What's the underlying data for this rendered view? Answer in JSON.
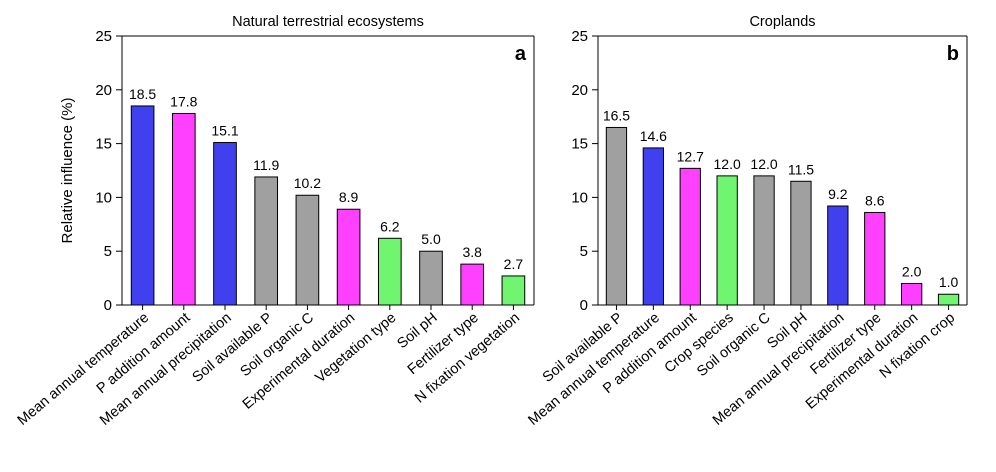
{
  "chart_data": [
    {
      "type": "bar",
      "title": "Natural terrestrial ecosystems",
      "panel": "a",
      "ylabel": "Relative influence (%)",
      "xlabel": "",
      "ylim": [
        0,
        25
      ],
      "yticks": [
        0,
        5,
        10,
        15,
        20,
        25
      ],
      "grid": false,
      "categories": [
        "Mean annual temperature",
        "P addition amount",
        "Mean annual precipitation",
        "Soil available P",
        "Soil organic C",
        "Experimental duration",
        "Vegetation type",
        "Soil pH",
        "Fertilizer type",
        "N fixation vegetation"
      ],
      "values": [
        18.5,
        17.8,
        15.1,
        11.9,
        10.2,
        8.9,
        6.2,
        5.0,
        3.8,
        2.7
      ],
      "value_labels": [
        "18.5",
        "17.8",
        "15.1",
        "11.9",
        "10.2",
        "8.9",
        "6.2",
        "5.0",
        "3.8",
        "2.7"
      ],
      "bar_colors": [
        "#4040ee",
        "#ff40ff",
        "#4040ee",
        "#a0a0a0",
        "#a0a0a0",
        "#ff40ff",
        "#70f570",
        "#a0a0a0",
        "#ff40ff",
        "#70f570"
      ]
    },
    {
      "type": "bar",
      "title": "Croplands",
      "panel": "b",
      "ylabel": "",
      "xlabel": "",
      "ylim": [
        0,
        25
      ],
      "yticks": [
        0,
        5,
        10,
        15,
        20,
        25
      ],
      "grid": false,
      "categories": [
        "Soil available P",
        "Mean annual temperature",
        "P addition amount",
        "Crop species",
        "Soil organic C",
        "Soil pH",
        "Mean annual precipitation",
        "Fertilizer type",
        "Experimental duration",
        "N fixation crop"
      ],
      "values": [
        16.5,
        14.6,
        12.7,
        12.0,
        12.0,
        11.5,
        9.2,
        8.6,
        2.0,
        1.0
      ],
      "value_labels": [
        "16.5",
        "14.6",
        "12.7",
        "12.0",
        "12.0",
        "11.5",
        "9.2",
        "8.6",
        "2.0",
        "1.0"
      ],
      "bar_colors": [
        "#a0a0a0",
        "#4040ee",
        "#ff40ff",
        "#70f570",
        "#a0a0a0",
        "#a0a0a0",
        "#4040ee",
        "#ff40ff",
        "#ff40ff",
        "#70f570"
      ]
    }
  ]
}
